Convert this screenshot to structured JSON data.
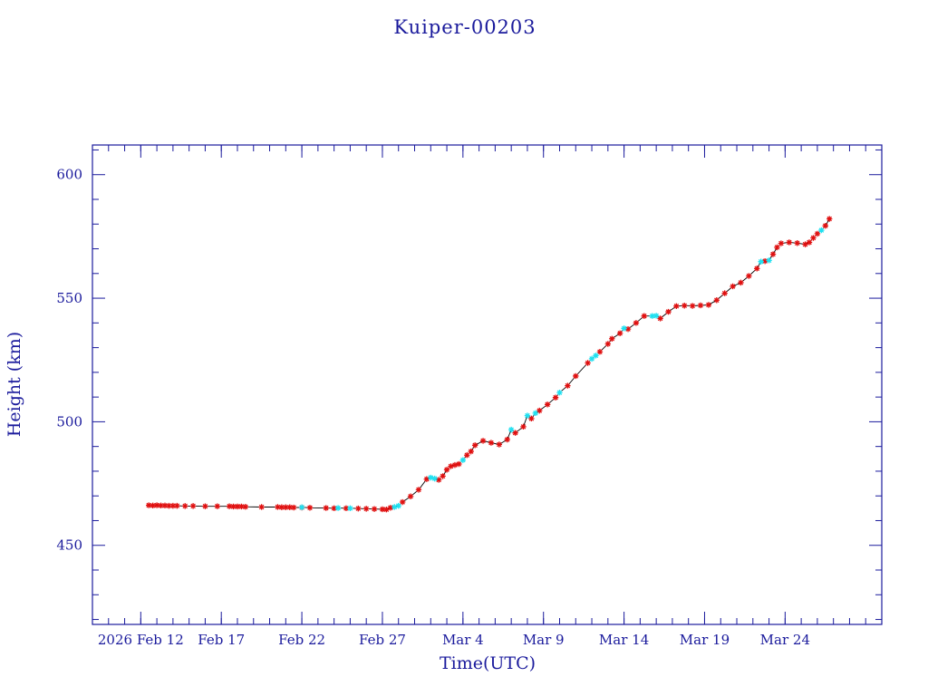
{
  "chart_data": {
    "type": "scatter",
    "title": "Kuiper-00203",
    "xlabel": "Time(UTC)",
    "ylabel": "Height (km)",
    "xlim": [
      "2026-02-09",
      "2026-03-30"
    ],
    "ylim": [
      418,
      612
    ],
    "x_ticks": [
      "2026-02-12",
      "2026-02-17",
      "2026-02-22",
      "2026-02-27",
      "2026-03-04",
      "2026-03-09",
      "2026-03-14",
      "2026-03-19",
      "2026-03-24"
    ],
    "x_tick_labels": [
      "2026 Feb 12",
      "Feb 17",
      "Feb 22",
      "Feb 27",
      "Mar  4",
      "Mar  9",
      "Mar 14",
      "Mar 19",
      "Mar 24"
    ],
    "y_ticks": [
      450,
      500,
      550,
      600
    ],
    "y_tick_labels": [
      "450",
      "500",
      "550",
      "600"
    ],
    "grid": false,
    "colors": {
      "axis": "#1a1a9c",
      "line": "#000000",
      "marker_red": "#e01010",
      "marker_cyan": "#20e0f0"
    },
    "series": [
      {
        "marker": "red-star",
        "points": [
          [
            "2026-02-12 12:00",
            466.2
          ],
          [
            "2026-02-12 18:00",
            466.1
          ],
          [
            "2026-02-13 00:00",
            466.2
          ],
          [
            "2026-02-13 06:00",
            466.1
          ],
          [
            "2026-02-13 12:00",
            466.1
          ],
          [
            "2026-02-13 18:00",
            466.0
          ],
          [
            "2026-02-14 00:00",
            466.0
          ],
          [
            "2026-02-14 06:00",
            466.0
          ],
          [
            "2026-02-14 18:00",
            465.9
          ],
          [
            "2026-02-15 06:00",
            465.9
          ],
          [
            "2026-02-16 00:00",
            465.8
          ],
          [
            "2026-02-16 18:00",
            465.8
          ],
          [
            "2026-02-17 12:00",
            465.8
          ],
          [
            "2026-02-17 18:00",
            465.7
          ],
          [
            "2026-02-18 00:00",
            465.7
          ],
          [
            "2026-02-18 06:00",
            465.7
          ],
          [
            "2026-02-18 12:00",
            465.6
          ],
          [
            "2026-02-19 12:00",
            465.5
          ],
          [
            "2026-02-20 12:00",
            465.5
          ],
          [
            "2026-02-20 18:00",
            465.4
          ],
          [
            "2026-02-21 00:00",
            465.4
          ],
          [
            "2026-02-21 06:00",
            465.4
          ],
          [
            "2026-02-21 12:00",
            465.3
          ],
          [
            "2026-02-22 00:00",
            465.3
          ],
          [
            "2026-02-22 12:00",
            465.2
          ],
          [
            "2026-02-23 12:00",
            465.1
          ],
          [
            "2026-02-24 00:00",
            465.0
          ],
          [
            "2026-02-24 18:00",
            465.0
          ],
          [
            "2026-02-25 12:00",
            464.9
          ],
          [
            "2026-02-26 00:00",
            464.8
          ],
          [
            "2026-02-26 12:00",
            464.7
          ],
          [
            "2026-02-27 00:00",
            464.6
          ],
          [
            "2026-02-27 06:00",
            464.5
          ],
          [
            "2026-02-27 12:00",
            465.2
          ],
          [
            "2026-02-28 06:00",
            467.5
          ],
          [
            "2026-02-28 18:00",
            469.8
          ],
          [
            "2026-03-01 06:00",
            472.5
          ],
          [
            "2026-03-01 18:00",
            476.8
          ],
          [
            "2026-03-02 12:00",
            476.5
          ],
          [
            "2026-03-02 18:00",
            478.0
          ],
          [
            "2026-03-03 00:00",
            480.6
          ],
          [
            "2026-03-03 06:00",
            482.0
          ],
          [
            "2026-03-03 12:00",
            482.5
          ],
          [
            "2026-03-03 18:00",
            482.9
          ],
          [
            "2026-03-04 06:00",
            486.5
          ],
          [
            "2026-03-04 12:00",
            488.0
          ],
          [
            "2026-03-04 18:00",
            490.5
          ],
          [
            "2026-03-05 06:00",
            492.3
          ],
          [
            "2026-03-05 18:00",
            491.5
          ],
          [
            "2026-03-06 06:00",
            490.8
          ],
          [
            "2026-03-06 18:00",
            492.8
          ],
          [
            "2026-03-07 06:00",
            495.5
          ],
          [
            "2026-03-07 18:00",
            498.0
          ],
          [
            "2026-03-08 06:00",
            501.3
          ],
          [
            "2026-03-08 18:00",
            504.5
          ],
          [
            "2026-03-09 06:00",
            507.0
          ],
          [
            "2026-03-09 18:00",
            509.8
          ],
          [
            "2026-03-10 12:00",
            514.6
          ],
          [
            "2026-03-11 00:00",
            518.5
          ],
          [
            "2026-03-11 18:00",
            523.8
          ],
          [
            "2026-03-12 12:00",
            528.3
          ],
          [
            "2026-03-13 00:00",
            531.5
          ],
          [
            "2026-03-13 06:00",
            533.6
          ],
          [
            "2026-03-13 18:00",
            535.8
          ],
          [
            "2026-03-14 06:00",
            537.5
          ],
          [
            "2026-03-14 18:00",
            540.0
          ],
          [
            "2026-03-15 06:00",
            542.8
          ],
          [
            "2026-03-16 06:00",
            541.8
          ],
          [
            "2026-03-16 18:00",
            544.5
          ],
          [
            "2026-03-17 06:00",
            546.8
          ],
          [
            "2026-03-17 18:00",
            547.0
          ],
          [
            "2026-03-18 06:00",
            546.9
          ],
          [
            "2026-03-18 18:00",
            547.1
          ],
          [
            "2026-03-19 06:00",
            547.3
          ],
          [
            "2026-03-19 18:00",
            549.2
          ],
          [
            "2026-03-20 06:00",
            552.0
          ],
          [
            "2026-03-20 18:00",
            554.8
          ],
          [
            "2026-03-21 06:00",
            556.3
          ],
          [
            "2026-03-21 18:00",
            559.0
          ],
          [
            "2026-03-22 06:00",
            562.0
          ],
          [
            "2026-03-22 18:00",
            565.0
          ],
          [
            "2026-03-23 06:00",
            567.8
          ],
          [
            "2026-03-23 12:00",
            570.6
          ],
          [
            "2026-03-23 18:00",
            572.2
          ],
          [
            "2026-03-24 06:00",
            572.6
          ],
          [
            "2026-03-24 18:00",
            572.3
          ],
          [
            "2026-03-25 06:00",
            571.8
          ],
          [
            "2026-03-25 12:00",
            572.6
          ],
          [
            "2026-03-25 18:00",
            574.4
          ],
          [
            "2026-03-26 00:00",
            576.1
          ],
          [
            "2026-03-26 12:00",
            579.3
          ],
          [
            "2026-03-26 18:00",
            582.1
          ]
        ]
      },
      {
        "marker": "cyan-star",
        "points": [
          [
            "2026-02-22 00:00",
            465.4
          ],
          [
            "2026-02-24 06:00",
            465.1
          ],
          [
            "2026-02-25 00:00",
            465.0
          ],
          [
            "2026-02-27 18:00",
            465.5
          ],
          [
            "2026-02-28 00:00",
            466.0
          ],
          [
            "2026-03-02 00:00",
            477.4
          ],
          [
            "2026-03-02 06:00",
            477.0
          ],
          [
            "2026-03-04 00:00",
            484.5
          ],
          [
            "2026-03-07 00:00",
            496.8
          ],
          [
            "2026-03-08 00:00",
            502.5
          ],
          [
            "2026-03-08 12:00",
            503.5
          ],
          [
            "2026-03-10 00:00",
            511.8
          ],
          [
            "2026-03-12 00:00",
            525.5
          ],
          [
            "2026-03-12 06:00",
            526.8
          ],
          [
            "2026-03-14 00:00",
            537.8
          ],
          [
            "2026-03-15 18:00",
            542.8
          ],
          [
            "2026-03-16 00:00",
            542.9
          ],
          [
            "2026-03-22 12:00",
            564.8
          ],
          [
            "2026-03-23 00:00",
            565.3
          ],
          [
            "2026-03-26 06:00",
            577.5
          ]
        ]
      }
    ]
  }
}
